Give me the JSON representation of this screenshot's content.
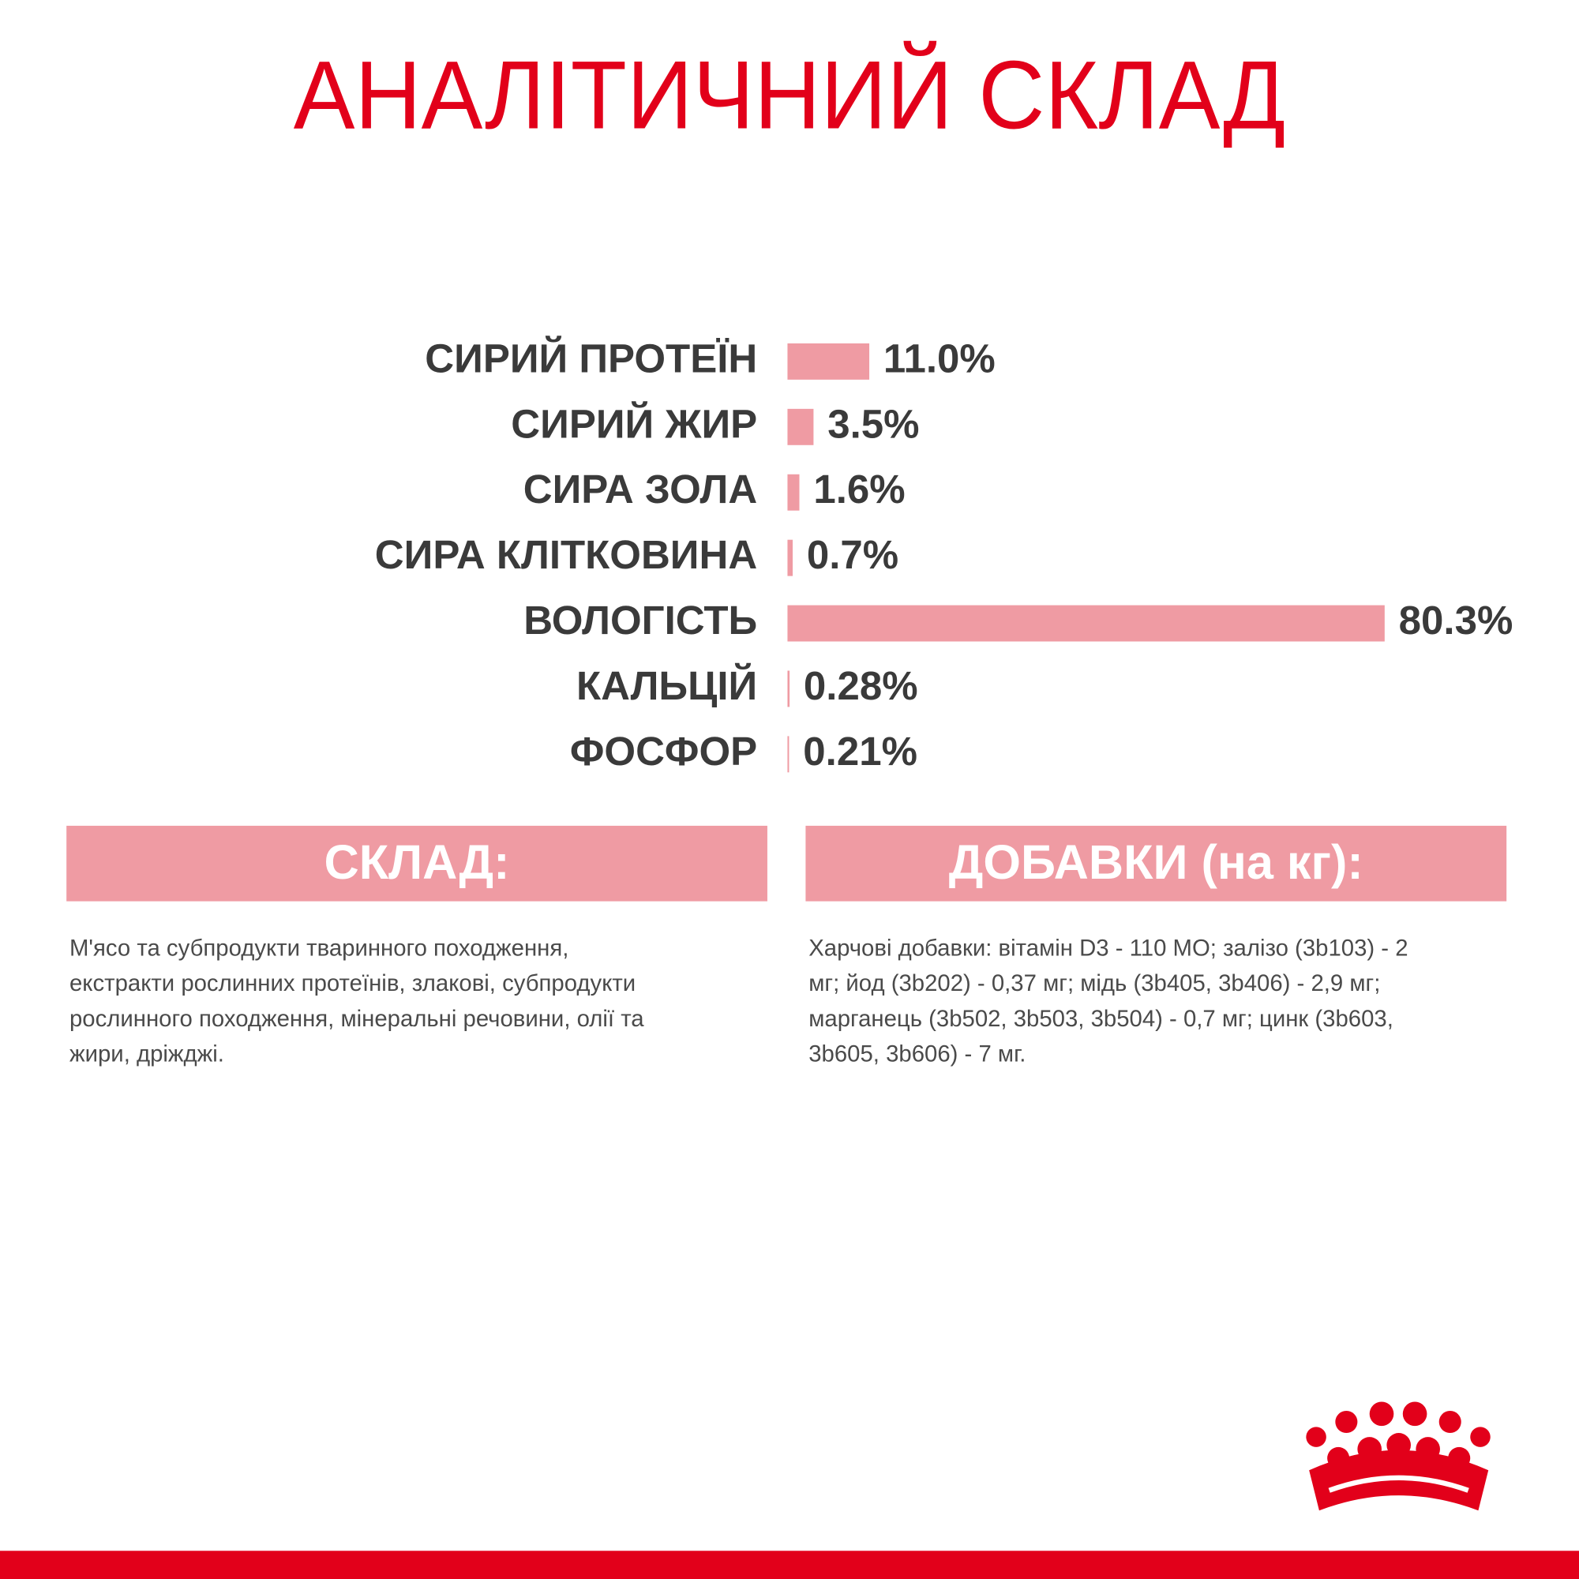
{
  "chart_data": {
    "type": "bar",
    "orientation": "horizontal",
    "title": "АНАЛІТИЧНИЙ СКЛАД",
    "categories": [
      "СИРИЙ ПРОТЕЇН",
      "СИРИЙ ЖИР",
      "СИРА ЗОЛА",
      "СИРА КЛІТКОВИНА",
      "ВОЛОГІСТЬ",
      "КАЛЬЦІЙ",
      "ФОСФОР"
    ],
    "values": [
      11.0,
      3.5,
      1.6,
      0.7,
      80.3,
      0.28,
      0.21
    ],
    "value_labels": [
      "11.0%",
      "3.5%",
      "1.6%",
      "0.7%",
      "80.3%",
      "0.28%",
      "0.21%"
    ],
    "color": "#ef9ba3"
  },
  "sections": [
    {
      "heading": "СКЛАД:",
      "lines": [
        "М'ясо та субпродукти тваринного походження,",
        "екстракти рослинних протеїнів, злакові, субпродукти",
        "рослинного походження, мінеральні речовини, олії та",
        "жири, дріжджі."
      ]
    },
    {
      "heading": "ДОБАВКИ (на кг):",
      "lines": [
        "Харчові добавки: вітамін D3 - 110 МО; залізо (3b103) - 2",
        "мг; йод (3b202) - 0,37 мг; мідь (3b405, 3b406) - 2,9 мг;",
        "марганець (3b502, 3b503, 3b504) - 0,7 мг; цинк (3b603,",
        "3b605, 3b606) - 7 мг."
      ]
    }
  ]
}
